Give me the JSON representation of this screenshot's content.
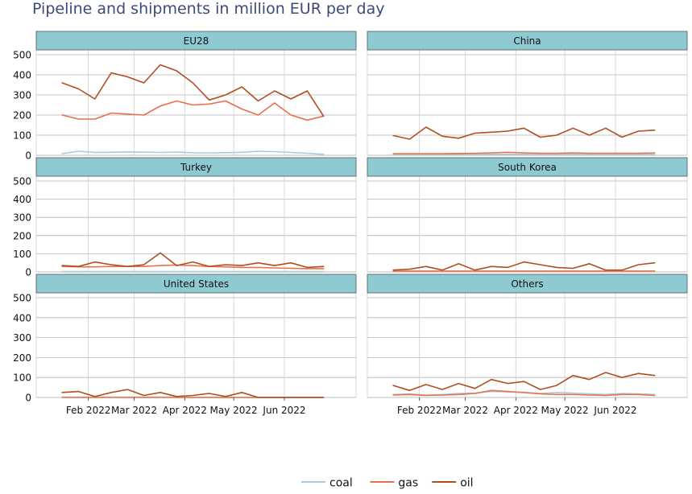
{
  "title": "Pipeline and shipments in million EUR per day",
  "colors": {
    "coal": "#a6cbe0",
    "gas": "#e8704a",
    "oil": "#b04e20",
    "strip": "#8ecad2"
  },
  "legend": [
    {
      "key": "coal",
      "label": "coal"
    },
    {
      "key": "gas",
      "label": "gas"
    },
    {
      "key": "oil",
      "label": "oil"
    }
  ],
  "chart_data": [
    {
      "type": "line",
      "facet": "EU28",
      "x": [
        "2022-01-16",
        "2022-01-26",
        "2022-02-05",
        "2022-02-15",
        "2022-02-25",
        "2022-03-07",
        "2022-03-17",
        "2022-03-27",
        "2022-04-06",
        "2022-04-16",
        "2022-04-26",
        "2022-05-06",
        "2022-05-16",
        "2022-05-26",
        "2022-06-05",
        "2022-06-15",
        "2022-06-25"
      ],
      "ylim": [
        0,
        500
      ],
      "series": [
        {
          "name": "coal",
          "values": [
            8,
            20,
            14,
            15,
            17,
            16,
            14,
            16,
            12,
            12,
            13,
            15,
            20,
            18,
            14,
            10,
            5
          ]
        },
        {
          "name": "gas",
          "values": [
            200,
            180,
            180,
            210,
            205,
            200,
            245,
            270,
            250,
            255,
            270,
            230,
            200,
            260,
            200,
            175,
            195
          ]
        },
        {
          "name": "oil",
          "values": [
            360,
            330,
            280,
            410,
            390,
            360,
            450,
            420,
            360,
            275,
            300,
            340,
            270,
            320,
            280,
            320,
            195
          ]
        }
      ]
    },
    {
      "type": "line",
      "facet": "China",
      "x": [
        "2022-01-16",
        "2022-01-26",
        "2022-02-05",
        "2022-02-15",
        "2022-02-25",
        "2022-03-07",
        "2022-03-17",
        "2022-03-27",
        "2022-04-06",
        "2022-04-16",
        "2022-04-26",
        "2022-05-06",
        "2022-05-16",
        "2022-05-26",
        "2022-06-05",
        "2022-06-15",
        "2022-06-25"
      ],
      "ylim": [
        0,
        500
      ],
      "series": [
        {
          "name": "coal",
          "values": [
            4,
            4,
            4,
            4,
            4,
            5,
            5,
            5,
            5,
            5,
            5,
            5,
            5,
            5,
            5,
            5,
            5
          ]
        },
        {
          "name": "gas",
          "values": [
            8,
            8,
            8,
            8,
            9,
            10,
            12,
            15,
            12,
            10,
            10,
            12,
            10,
            10,
            10,
            10,
            12
          ]
        },
        {
          "name": "oil",
          "values": [
            98,
            80,
            140,
            95,
            85,
            110,
            115,
            120,
            135,
            90,
            100,
            135,
            100,
            135,
            90,
            120,
            125
          ]
        }
      ]
    },
    {
      "type": "line",
      "facet": "Turkey",
      "x": [
        "2022-01-16",
        "2022-01-26",
        "2022-02-05",
        "2022-02-15",
        "2022-02-25",
        "2022-03-07",
        "2022-03-17",
        "2022-03-27",
        "2022-04-06",
        "2022-04-16",
        "2022-04-26",
        "2022-05-06",
        "2022-05-16",
        "2022-05-26",
        "2022-06-05",
        "2022-06-15",
        "2022-06-25"
      ],
      "ylim": [
        0,
        500
      ],
      "series": [
        {
          "name": "coal",
          "values": [
            2,
            2,
            2,
            2,
            2,
            2,
            2,
            2,
            2,
            2,
            2,
            2,
            2,
            2,
            2,
            2,
            2
          ]
        },
        {
          "name": "gas",
          "values": [
            30,
            28,
            28,
            30,
            30,
            30,
            35,
            38,
            35,
            30,
            28,
            25,
            25,
            22,
            20,
            18,
            18
          ]
        },
        {
          "name": "oil",
          "values": [
            35,
            30,
            55,
            40,
            30,
            40,
            105,
            35,
            55,
            30,
            40,
            35,
            50,
            35,
            50,
            25,
            30
          ]
        }
      ]
    },
    {
      "type": "line",
      "facet": "South Korea",
      "x": [
        "2022-01-16",
        "2022-01-26",
        "2022-02-05",
        "2022-02-15",
        "2022-02-25",
        "2022-03-07",
        "2022-03-17",
        "2022-03-27",
        "2022-04-06",
        "2022-04-16",
        "2022-04-26",
        "2022-05-06",
        "2022-05-16",
        "2022-05-26",
        "2022-06-05",
        "2022-06-15",
        "2022-06-25"
      ],
      "ylim": [
        0,
        500
      ],
      "series": [
        {
          "name": "coal",
          "values": [
            3,
            3,
            3,
            3,
            3,
            3,
            3,
            3,
            3,
            3,
            3,
            3,
            3,
            3,
            3,
            3,
            3
          ]
        },
        {
          "name": "gas",
          "values": [
            5,
            5,
            5,
            5,
            5,
            5,
            5,
            5,
            5,
            5,
            5,
            5,
            5,
            5,
            5,
            5,
            5
          ]
        },
        {
          "name": "oil",
          "values": [
            10,
            15,
            30,
            10,
            45,
            10,
            30,
            25,
            55,
            40,
            25,
            20,
            45,
            10,
            10,
            40,
            50
          ]
        }
      ]
    },
    {
      "type": "line",
      "facet": "United States",
      "x": [
        "2022-01-16",
        "2022-01-26",
        "2022-02-05",
        "2022-02-15",
        "2022-02-25",
        "2022-03-07",
        "2022-03-17",
        "2022-03-27",
        "2022-04-06",
        "2022-04-16",
        "2022-04-26",
        "2022-05-06",
        "2022-05-16",
        "2022-05-26",
        "2022-06-05",
        "2022-06-15",
        "2022-06-25"
      ],
      "ylim": [
        0,
        500
      ],
      "series": [
        {
          "name": "coal",
          "values": [
            2,
            2,
            2,
            2,
            2,
            2,
            2,
            2,
            1,
            1,
            1,
            0,
            0,
            0,
            0,
            0,
            0
          ]
        },
        {
          "name": "gas",
          "values": [
            0,
            0,
            0,
            0,
            0,
            0,
            0,
            0,
            0,
            0,
            0,
            0,
            0,
            0,
            0,
            0,
            0
          ]
        },
        {
          "name": "oil",
          "values": [
            25,
            30,
            5,
            25,
            40,
            10,
            25,
            5,
            10,
            20,
            5,
            25,
            0,
            0,
            0,
            0,
            0
          ]
        }
      ]
    },
    {
      "type": "line",
      "facet": "Others",
      "x": [
        "2022-01-16",
        "2022-01-26",
        "2022-02-05",
        "2022-02-15",
        "2022-02-25",
        "2022-03-07",
        "2022-03-17",
        "2022-03-27",
        "2022-04-06",
        "2022-04-16",
        "2022-04-26",
        "2022-05-06",
        "2022-05-16",
        "2022-05-26",
        "2022-06-05",
        "2022-06-15",
        "2022-06-25"
      ],
      "ylim": [
        0,
        500
      ],
      "series": [
        {
          "name": "coal",
          "values": [
            15,
            18,
            12,
            15,
            20,
            22,
            30,
            28,
            25,
            20,
            25,
            22,
            18,
            15,
            20,
            18,
            15
          ]
        },
        {
          "name": "gas",
          "values": [
            12,
            15,
            10,
            12,
            15,
            20,
            35,
            30,
            25,
            18,
            15,
            15,
            12,
            10,
            15,
            15,
            10
          ]
        },
        {
          "name": "oil",
          "values": [
            60,
            35,
            65,
            40,
            70,
            45,
            90,
            70,
            80,
            40,
            60,
            110,
            90,
            125,
            100,
            120,
            110
          ]
        }
      ]
    }
  ],
  "y_ticks": [
    "0",
    "100",
    "200",
    "300",
    "400",
    "500"
  ],
  "x_ticks": [
    {
      "date": "2022-02-01",
      "label": "Feb 2022"
    },
    {
      "date": "2022-03-01",
      "label": "Mar 2022"
    },
    {
      "date": "2022-04-01",
      "label": "Apr 2022"
    },
    {
      "date": "2022-05-01",
      "label": "May 2022"
    },
    {
      "date": "2022-06-01",
      "label": "Jun 2022"
    }
  ]
}
